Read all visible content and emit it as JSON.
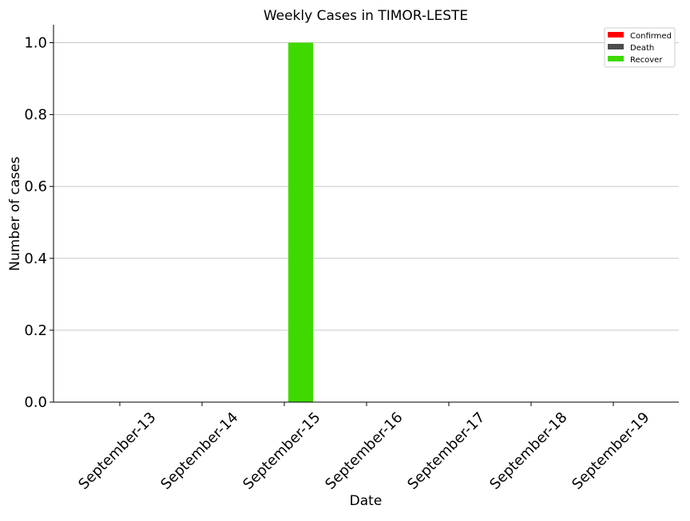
{
  "chart_data": {
    "type": "bar",
    "title": "Weekly Cases in TIMOR-LESTE",
    "xlabel": "Date",
    "ylabel": "Number of cases",
    "categories": [
      "September-13",
      "September-14",
      "September-15",
      "September-16",
      "September-17",
      "September-18",
      "September-19"
    ],
    "series": [
      {
        "name": "Confirmed",
        "color": "#ff0000",
        "values": [
          0,
          0,
          0,
          0,
          0,
          0,
          0
        ]
      },
      {
        "name": "Death",
        "color": "#4d4d4d",
        "values": [
          0,
          0,
          0,
          0,
          0,
          0,
          0
        ]
      },
      {
        "name": "Recover",
        "color": "#3fd900",
        "values": [
          0,
          0,
          1,
          0,
          0,
          0,
          0
        ]
      }
    ],
    "ylim": [
      0,
      1.05
    ],
    "yticks": [
      "0.0",
      "0.2",
      "0.4",
      "0.6",
      "0.8",
      "1.0"
    ],
    "grid": "horizontal",
    "legend_position": "top-right"
  }
}
